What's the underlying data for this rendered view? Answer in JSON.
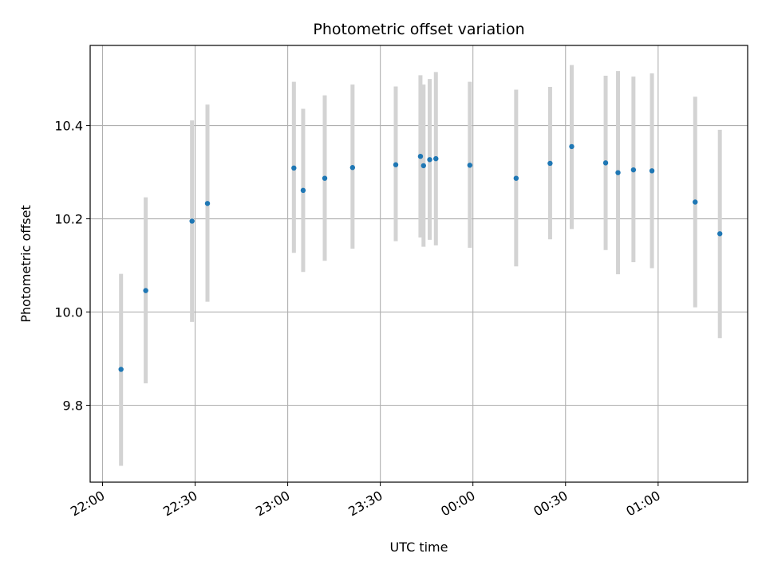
{
  "chart_data": {
    "type": "scatter",
    "title": "Photometric offset variation",
    "xlabel": "UTC time",
    "ylabel": "Photometric offset",
    "x_ticks": [
      "22:00",
      "22:30",
      "23:00",
      "23:30",
      "00:00",
      "00:30",
      "01:00"
    ],
    "y_ticks": [
      "9.8",
      "10.0",
      "10.2",
      "10.4"
    ],
    "xlim": [
      "21:56",
      "01:29"
    ],
    "ylim": [
      9.635,
      10.572
    ],
    "grid": true,
    "errorbar_color": "#d3d3d3",
    "point_color": "#1f77b4",
    "points": [
      {
        "x": "22:06",
        "y": 9.877,
        "yerr_low": 9.67,
        "yerr_high": 10.082
      },
      {
        "x": "22:14",
        "y": 10.046,
        "yerr_low": 9.847,
        "yerr_high": 10.246
      },
      {
        "x": "22:29",
        "y": 10.195,
        "yerr_low": 9.979,
        "yerr_high": 10.411
      },
      {
        "x": "22:34",
        "y": 10.233,
        "yerr_low": 10.022,
        "yerr_high": 10.445
      },
      {
        "x": "23:02",
        "y": 10.309,
        "yerr_low": 10.127,
        "yerr_high": 10.494
      },
      {
        "x": "23:05",
        "y": 10.261,
        "yerr_low": 10.086,
        "yerr_high": 10.436
      },
      {
        "x": "23:12",
        "y": 10.287,
        "yerr_low": 10.11,
        "yerr_high": 10.465
      },
      {
        "x": "23:21",
        "y": 10.31,
        "yerr_low": 10.136,
        "yerr_high": 10.488
      },
      {
        "x": "23:35",
        "y": 10.316,
        "yerr_low": 10.152,
        "yerr_high": 10.484
      },
      {
        "x": "23:43",
        "y": 10.334,
        "yerr_low": 10.16,
        "yerr_high": 10.508
      },
      {
        "x": "23:44",
        "y": 10.314,
        "yerr_low": 10.14,
        "yerr_high": 10.488
      },
      {
        "x": "23:46",
        "y": 10.327,
        "yerr_low": 10.155,
        "yerr_high": 10.5
      },
      {
        "x": "23:48",
        "y": 10.329,
        "yerr_low": 10.143,
        "yerr_high": 10.515
      },
      {
        "x": "23:59",
        "y": 10.315,
        "yerr_low": 10.138,
        "yerr_high": 10.494
      },
      {
        "x": "00:14",
        "y": 10.287,
        "yerr_low": 10.098,
        "yerr_high": 10.477
      },
      {
        "x": "00:25",
        "y": 10.319,
        "yerr_low": 10.156,
        "yerr_high": 10.483
      },
      {
        "x": "00:32",
        "y": 10.355,
        "yerr_low": 10.178,
        "yerr_high": 10.53
      },
      {
        "x": "00:43",
        "y": 10.32,
        "yerr_low": 10.133,
        "yerr_high": 10.507
      },
      {
        "x": "00:47",
        "y": 10.299,
        "yerr_low": 10.081,
        "yerr_high": 10.517
      },
      {
        "x": "00:52",
        "y": 10.305,
        "yerr_low": 10.107,
        "yerr_high": 10.505
      },
      {
        "x": "00:58",
        "y": 10.303,
        "yerr_low": 10.094,
        "yerr_high": 10.512
      },
      {
        "x": "01:12",
        "y": 10.236,
        "yerr_low": 10.01,
        "yerr_high": 10.462
      },
      {
        "x": "01:20",
        "y": 10.168,
        "yerr_low": 9.944,
        "yerr_high": 10.391
      }
    ]
  }
}
